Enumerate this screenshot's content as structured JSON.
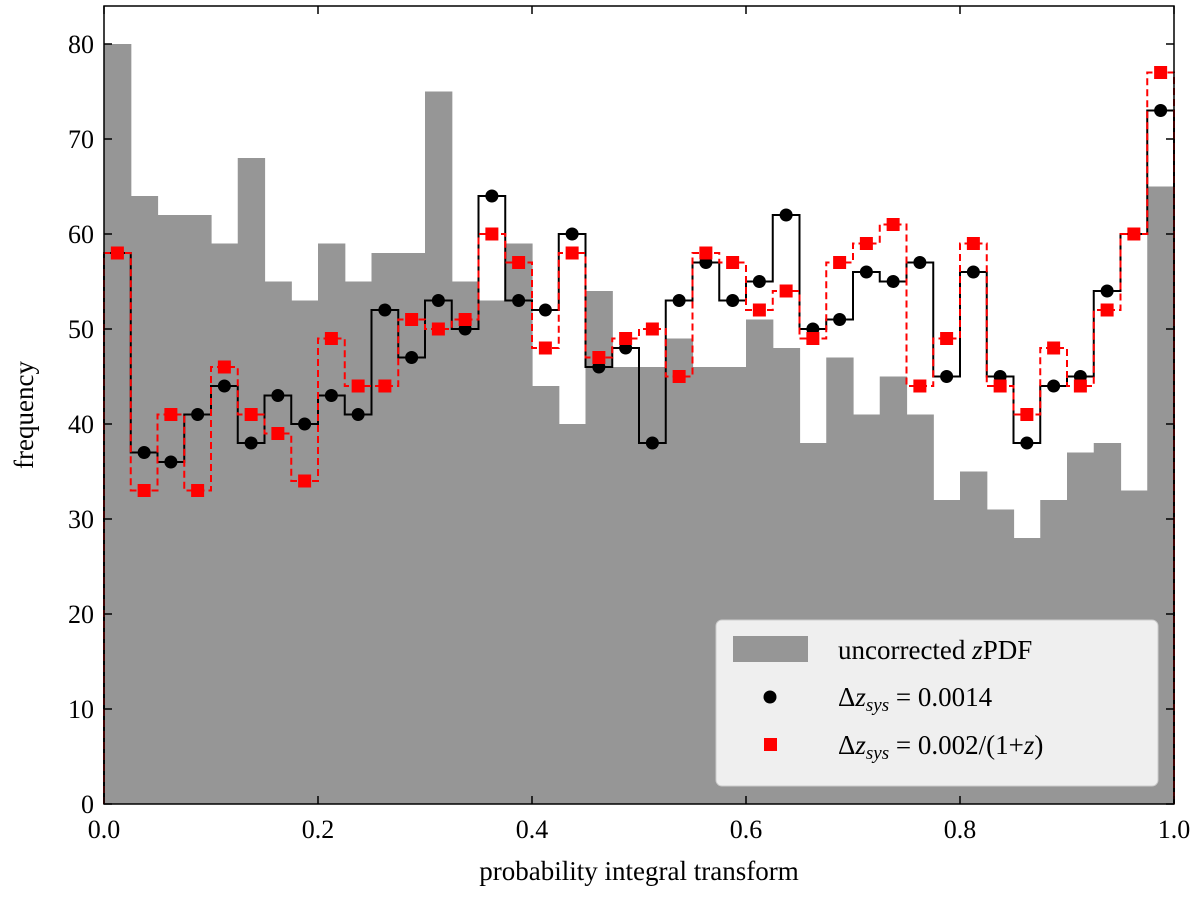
{
  "chart_data": {
    "type": "bar",
    "xlabel": "probability integral transform",
    "ylabel": "frequency",
    "xlim": [
      0.0,
      1.0
    ],
    "ylim": [
      0,
      84
    ],
    "xticks": [
      "0.0",
      "0.2",
      "0.4",
      "0.6",
      "0.8",
      "1.0"
    ],
    "yticks": [
      "0",
      "10",
      "20",
      "30",
      "40",
      "50",
      "60",
      "70",
      "80"
    ],
    "bins": 40,
    "bin_width": 0.025,
    "legend_position": "lower-right",
    "series": [
      {
        "name": "uncorrected zPDF",
        "legend_main": "uncorrected ",
        "legend_italic": "z",
        "legend_rest": "PDF",
        "style": "filled histogram",
        "color": "#969696",
        "values": [
          80,
          64,
          62,
          62,
          59,
          68,
          55,
          53,
          59,
          55,
          58,
          58,
          75,
          55,
          53,
          59,
          44,
          40,
          54,
          46,
          46,
          49,
          46,
          46,
          51,
          48,
          38,
          47,
          41,
          45,
          41,
          32,
          35,
          31,
          28,
          32,
          37,
          38,
          33,
          65
        ]
      },
      {
        "name": "Δz_sys = 0.0014",
        "legend_main": "Δ",
        "legend_italic": "z",
        "legend_sub": "sys",
        "legend_rest": " = 0.0014",
        "style": "solid step with circle markers",
        "color": "#000000",
        "values": [
          58,
          37,
          36,
          41,
          44,
          38,
          43,
          40,
          43,
          41,
          52,
          47,
          53,
          50,
          64,
          53,
          52,
          60,
          46,
          48,
          38,
          53,
          57,
          53,
          55,
          62,
          50,
          51,
          56,
          55,
          57,
          45,
          56,
          45,
          38,
          44,
          45,
          54,
          60,
          73
        ]
      },
      {
        "name": "Δz_sys = 0.002/(1+z)",
        "legend_main": "Δ",
        "legend_italic": "z",
        "legend_sub": "sys",
        "legend_rest": " = 0.002/(1+",
        "legend_italic2": "z",
        "legend_end": ")",
        "style": "dashed step with square markers",
        "color": "#ff0000",
        "values": [
          58,
          33,
          41,
          33,
          46,
          41,
          39,
          34,
          49,
          44,
          44,
          51,
          50,
          51,
          60,
          57,
          48,
          58,
          47,
          49,
          50,
          45,
          58,
          57,
          52,
          54,
          49,
          57,
          59,
          61,
          44,
          49,
          59,
          44,
          41,
          48,
          44,
          52,
          60,
          77
        ]
      }
    ]
  }
}
